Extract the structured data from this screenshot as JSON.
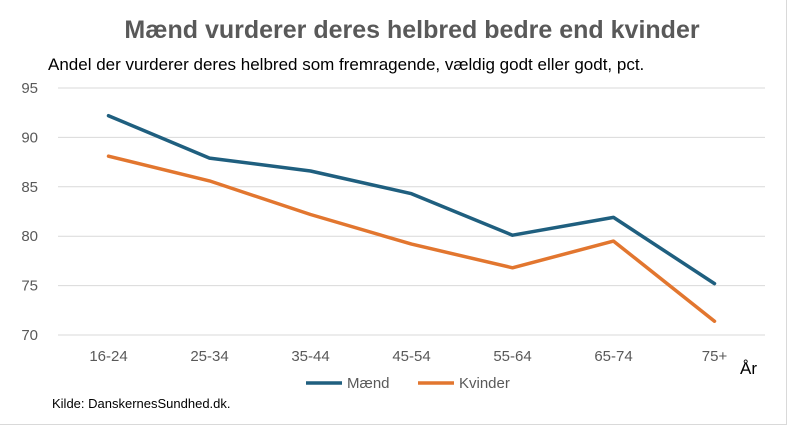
{
  "chart_data": {
    "type": "line",
    "title": "Mænd vurderer deres helbred bedre end kvinder",
    "subtitle": "Andel der vurderer deres helbred som fremragende, vældig godt eller godt, pct.",
    "x_unit_label": "År",
    "categories": [
      "16-24",
      "25-34",
      "35-44",
      "45-54",
      "55-64",
      "65-74",
      "75+"
    ],
    "ylim": [
      70,
      95
    ],
    "yticks": [
      "95",
      "90",
      "85",
      "80",
      "75",
      "70"
    ],
    "grid": true,
    "legend_position": "bottom",
    "series": [
      {
        "name": "Mænd",
        "color": "#1f5f7f",
        "values": [
          92.2,
          87.9,
          86.6,
          84.3,
          80.1,
          81.9,
          75.2
        ]
      },
      {
        "name": "Kvinder",
        "color": "#e2762f",
        "values": [
          88.1,
          85.6,
          82.2,
          79.2,
          76.8,
          79.5,
          71.4
        ]
      }
    ],
    "source": "Kilde: DanskernesSundhed.dk."
  }
}
